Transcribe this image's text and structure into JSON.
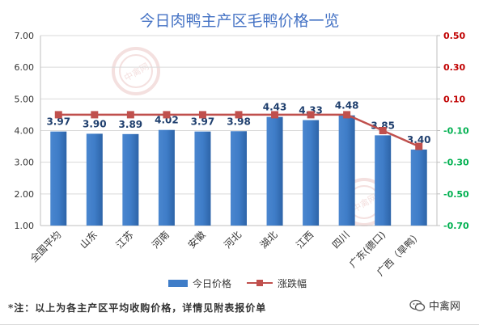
{
  "chart_data": {
    "type": "bar+line",
    "title": "今日肉鸭主产区毛鸭价格一览",
    "categories": [
      "全国平均",
      "山东",
      "江苏",
      "河南",
      "安徽",
      "河北",
      "湖北",
      "江西",
      "四川",
      "广东(德口)",
      "广西（旱鸭）"
    ],
    "series": [
      {
        "name": "今日价格",
        "type": "bar",
        "axis": "left",
        "color": "#3f7dc8",
        "values": [
          3.97,
          3.9,
          3.89,
          4.02,
          3.97,
          3.98,
          4.43,
          4.33,
          4.48,
          3.85,
          3.4
        ]
      },
      {
        "name": "涨跌幅",
        "type": "line",
        "axis": "right",
        "color": "#c0504d",
        "values": [
          0.0,
          0.0,
          0.0,
          0.0,
          0.0,
          0.0,
          0.0,
          0.0,
          0.0,
          -0.1,
          -0.2
        ]
      }
    ],
    "y_left": {
      "min": 1.0,
      "max": 7.0,
      "ticks": [
        "1.00",
        "2.00",
        "3.00",
        "4.00",
        "5.00",
        "6.00",
        "7.00"
      ]
    },
    "y_right": {
      "min": -0.7,
      "max": 0.5,
      "ticks": [
        "0.50",
        "0.30",
        "0.10",
        "-0.10",
        "-0.30",
        "-0.50",
        "-0.70"
      ]
    },
    "grid": true,
    "legend_position": "bottom",
    "bar_labels": [
      "3.97",
      "3.90",
      "3.89",
      "4.02",
      "3.97",
      "3.98",
      "4.43",
      "4.33",
      "4.48",
      "3.85",
      "3.40"
    ]
  },
  "footnote": "*注：以上为各主产区平均收购价格，详情见附表报价单",
  "brand": {
    "name": "中禽网",
    "icon": "wechat-icon",
    "watermark": "中禽网"
  },
  "colors": {
    "title": "#4472c4",
    "left_axis": "#333333",
    "right_axis_positive": "#c00000",
    "right_axis_negative": "#00b050"
  }
}
